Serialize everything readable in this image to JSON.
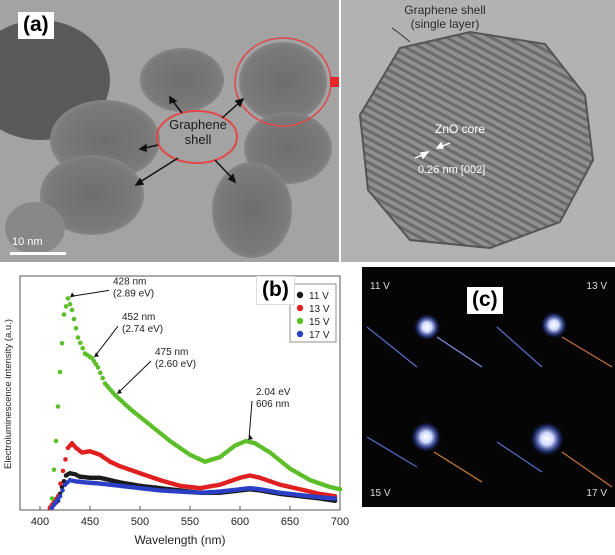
{
  "panel_a": {
    "label": "(a)",
    "graphene_shell_single_layer": [
      "Graphene shell",
      "(single layer)"
    ],
    "graphene_shell": [
      "Graphene",
      "shell"
    ],
    "zno_core": "ZnO core",
    "lattice_spacing": "0.26 nm [002]",
    "scale_bar": "10 nm"
  },
  "panel_b": {
    "label": "(b)",
    "chart_data": {
      "type": "scatter",
      "xlabel": "Wavelength (nm)",
      "ylabel": "Electroluminescence intensity (a.u.)",
      "xlim": [
        380,
        700
      ],
      "x_ticks": [
        400,
        450,
        500,
        550,
        600,
        650,
        700
      ],
      "legend_position": "top-right",
      "series": [
        {
          "name": "11 V",
          "color": "#1a1a1a",
          "points": [
            [
              410,
              0.01
            ],
            [
              418,
              0.04
            ],
            [
              422,
              0.1
            ],
            [
              426,
              0.15
            ],
            [
              430,
              0.16
            ],
            [
              435,
              0.155
            ],
            [
              440,
              0.145
            ],
            [
              450,
              0.14
            ],
            [
              460,
              0.14
            ],
            [
              470,
              0.13
            ],
            [
              480,
              0.12
            ],
            [
              500,
              0.105
            ],
            [
              520,
              0.095
            ],
            [
              540,
              0.085
            ],
            [
              560,
              0.075
            ],
            [
              580,
              0.075
            ],
            [
              600,
              0.085
            ],
            [
              610,
              0.09
            ],
            [
              620,
              0.085
            ],
            [
              640,
              0.07
            ],
            [
              660,
              0.06
            ],
            [
              680,
              0.05
            ],
            [
              695,
              0.04
            ]
          ]
        },
        {
          "name": "13 V",
          "color": "#e02020",
          "points": [
            [
              410,
              0.01
            ],
            [
              418,
              0.06
            ],
            [
              423,
              0.17
            ],
            [
              428,
              0.27
            ],
            [
              432,
              0.29
            ],
            [
              436,
              0.27
            ],
            [
              442,
              0.25
            ],
            [
              450,
              0.255
            ],
            [
              460,
              0.24
            ],
            [
              470,
              0.21
            ],
            [
              480,
              0.19
            ],
            [
              500,
              0.16
            ],
            [
              520,
              0.13
            ],
            [
              540,
              0.105
            ],
            [
              560,
              0.095
            ],
            [
              580,
              0.11
            ],
            [
              600,
              0.14
            ],
            [
              610,
              0.15
            ],
            [
              620,
              0.14
            ],
            [
              640,
              0.11
            ],
            [
              660,
              0.09
            ],
            [
              680,
              0.07
            ],
            [
              695,
              0.06
            ]
          ]
        },
        {
          "name": "15 V",
          "color": "#5cbf2a",
          "points": [
            [
              412,
              0.05
            ],
            [
              416,
              0.3
            ],
            [
              420,
              0.6
            ],
            [
              424,
              0.85
            ],
            [
              428,
              0.92
            ],
            [
              432,
              0.87
            ],
            [
              438,
              0.75
            ],
            [
              445,
              0.68
            ],
            [
              452,
              0.66
            ],
            [
              458,
              0.62
            ],
            [
              465,
              0.55
            ],
            [
              475,
              0.5
            ],
            [
              490,
              0.44
            ],
            [
              510,
              0.37
            ],
            [
              530,
              0.3
            ],
            [
              550,
              0.24
            ],
            [
              565,
              0.21
            ],
            [
              580,
              0.23
            ],
            [
              595,
              0.28
            ],
            [
              606,
              0.3
            ],
            [
              615,
              0.29
            ],
            [
              630,
              0.25
            ],
            [
              650,
              0.18
            ],
            [
              670,
              0.13
            ],
            [
              690,
              0.1
            ],
            [
              700,
              0.09
            ]
          ]
        },
        {
          "name": "17 V",
          "color": "#2b3fc4",
          "points": [
            [
              412,
              0.01
            ],
            [
              420,
              0.06
            ],
            [
              425,
              0.11
            ],
            [
              430,
              0.13
            ],
            [
              435,
              0.125
            ],
            [
              445,
              0.12
            ],
            [
              460,
              0.115
            ],
            [
              480,
              0.105
            ],
            [
              500,
              0.095
            ],
            [
              520,
              0.085
            ],
            [
              540,
              0.08
            ],
            [
              560,
              0.075
            ],
            [
              580,
              0.08
            ],
            [
              600,
              0.09
            ],
            [
              610,
              0.095
            ],
            [
              620,
              0.09
            ],
            [
              640,
              0.075
            ],
            [
              660,
              0.065
            ],
            [
              680,
              0.055
            ],
            [
              695,
              0.05
            ]
          ]
        }
      ],
      "annotations": [
        {
          "text": [
            "428 nm",
            "(2.89 eV)"
          ],
          "x": 428
        },
        {
          "text": [
            "452 nm",
            "(2.74 eV)"
          ],
          "x": 452
        },
        {
          "text": [
            "475 nm",
            "(2.60 eV)"
          ],
          "x": 475
        },
        {
          "text": [
            "2.04 eV",
            "606 nm"
          ],
          "x": 606
        }
      ]
    }
  },
  "panel_c": {
    "label": "(c)",
    "voltages": [
      "11 V",
      "13 V",
      "15 V",
      "17 V"
    ]
  }
}
